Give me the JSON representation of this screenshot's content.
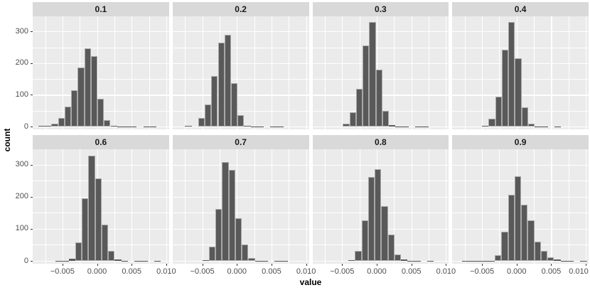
{
  "figure": {
    "background": "#ffffff",
    "panel_bg": "#ebebeb",
    "strip_bg": "#d9d9d9",
    "grid_color": "#ffffff",
    "bar_fill": "#595959",
    "bar_border": "#a8a8a8",
    "tick_label_color": "#4d4d4d",
    "tick_mark_color": "#333333"
  },
  "chart_data": {
    "type": "bar",
    "subtype": "faceted-histogram",
    "title": "",
    "xlabel": "value",
    "ylabel": "count",
    "facet_labels": [
      "0.1",
      "0.2",
      "0.3",
      "0.4",
      "0.6",
      "0.7",
      "0.8",
      "0.9"
    ],
    "x_tick_labels": [
      "−0.005",
      "0.000",
      "0.005",
      "0.010"
    ],
    "x_tick_values": [
      -0.005,
      0.0,
      0.005,
      0.01
    ],
    "x_minor_values": [
      -0.0075,
      -0.0025,
      0.0025,
      0.0075
    ],
    "y_tick_values": [
      0,
      100,
      200,
      300
    ],
    "y_minor_values": [
      50,
      150,
      250
    ],
    "xlim": [
      -0.0093,
      0.0104
    ],
    "ylim": [
      0,
      348
    ],
    "bin_width": 0.00095,
    "grid": true,
    "legend": "none",
    "facets": [
      {
        "label": "0.1",
        "first_bin_left": -0.0085,
        "counts": [
          2,
          3,
          8,
          27,
          62,
          115,
          186,
          246,
          222,
          88,
          21,
          3,
          1,
          1,
          1,
          0,
          1,
          1
        ]
      },
      {
        "label": "0.2",
        "first_bin_left": -0.0075,
        "counts": [
          3,
          0,
          26,
          70,
          160,
          266,
          290,
          138,
          36,
          3,
          1,
          1,
          0,
          1,
          1
        ]
      },
      {
        "label": "0.3",
        "first_bin_left": -0.0049,
        "counts": [
          8,
          45,
          120,
          255,
          330,
          180,
          50,
          4,
          1,
          1,
          0,
          1,
          1
        ]
      },
      {
        "label": "0.4",
        "first_bin_left": -0.005,
        "counts": [
          3,
          25,
          95,
          243,
          330,
          216,
          61,
          10,
          1,
          1,
          0,
          1
        ]
      },
      {
        "label": "0.6",
        "first_bin_left": -0.006,
        "counts": [
          1,
          1,
          6,
          58,
          196,
          329,
          258,
          113,
          30,
          4,
          1,
          0,
          1,
          1,
          0,
          1
        ]
      },
      {
        "label": "0.7",
        "first_bin_left": -0.005,
        "counts": [
          3,
          45,
          162,
          308,
          283,
          132,
          52,
          8,
          1,
          1,
          0,
          1,
          1
        ]
      },
      {
        "label": "0.8",
        "first_bin_left": -0.0041,
        "counts": [
          2,
          30,
          127,
          261,
          285,
          171,
          82,
          21,
          5,
          1,
          1,
          0,
          1
        ]
      },
      {
        "label": "0.9",
        "first_bin_left": -0.0079,
        "counts": [
          1,
          1,
          1,
          1,
          1,
          18,
          91,
          207,
          264,
          176,
          126,
          59,
          30,
          11,
          4,
          1,
          1,
          0,
          1
        ]
      }
    ]
  }
}
